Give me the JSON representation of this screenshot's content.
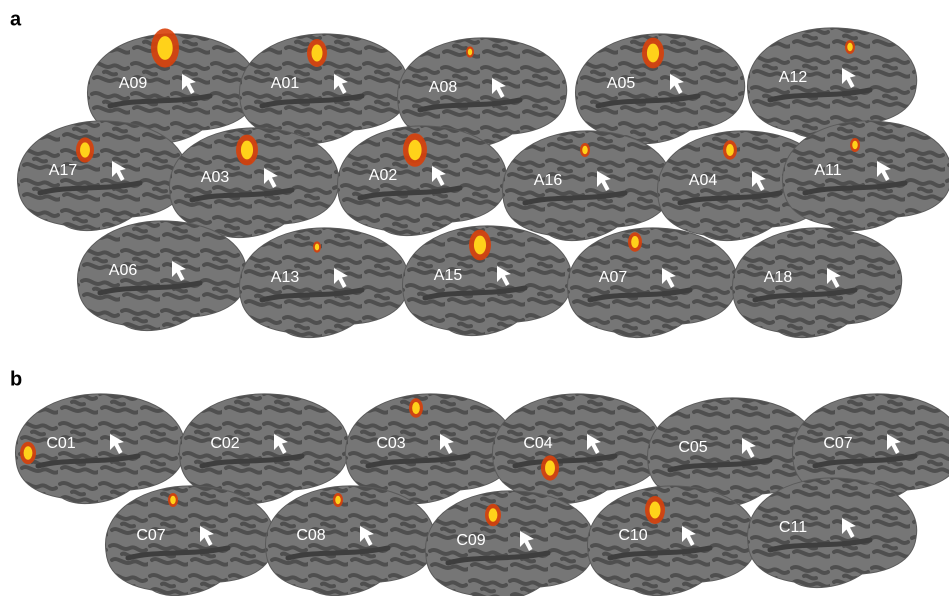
{
  "panels": [
    {
      "label": "a",
      "brains": [
        "A09",
        "A01",
        "A08",
        "A05",
        "A12",
        "A17",
        "A03",
        "A02",
        "A16",
        "A04",
        "A11",
        "A06",
        "A13",
        "A15",
        "A07",
        "A18"
      ]
    },
    {
      "label": "b",
      "brains": [
        "C01",
        "C02",
        "C03",
        "C04",
        "C05",
        "C07",
        "C07",
        "C08",
        "C09",
        "C10",
        "C11"
      ]
    }
  ]
}
